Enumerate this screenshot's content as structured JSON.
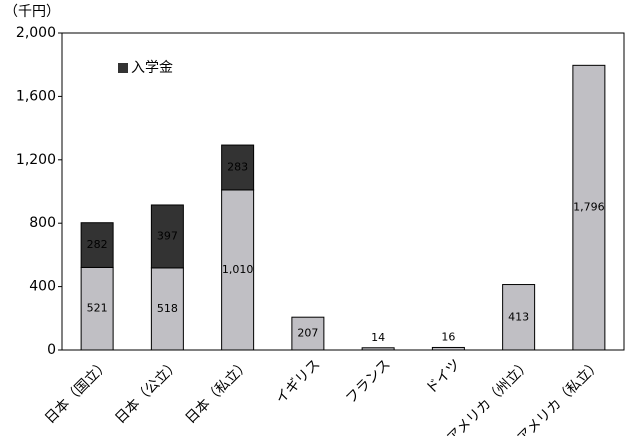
{
  "chart_data": {
    "type": "stacked-bar",
    "y_unit_label": "（千円）",
    "categories": [
      "日本（国立）",
      "日本（公立）",
      "日本（私立）",
      "イギリス",
      "フランス",
      "ドイツ",
      "アメリカ（州立）",
      "アメリカ（私立）"
    ],
    "series": [
      {
        "color": "#c0bfc4",
        "values": [
          521,
          518,
          1010,
          207,
          14,
          16,
          413,
          1796
        ],
        "value_labels": [
          "521",
          "518",
          "1,010",
          "207",
          "14",
          "16",
          "413",
          "1,796"
        ]
      },
      {
        "name": "入学金",
        "color": "#333333",
        "values": [
          282,
          397,
          283,
          null,
          null,
          null,
          null,
          null
        ]
      }
    ],
    "ylim": [
      0,
      2000
    ],
    "yticks": [
      0,
      400,
      800,
      {
        "value": 1200,
        "label": "1,200"
      },
      {
        "value": 1600,
        "label": "1,600"
      },
      {
        "value": 2000,
        "label": "2,000"
      }
    ],
    "legend": "top-left",
    "grid": false
  }
}
